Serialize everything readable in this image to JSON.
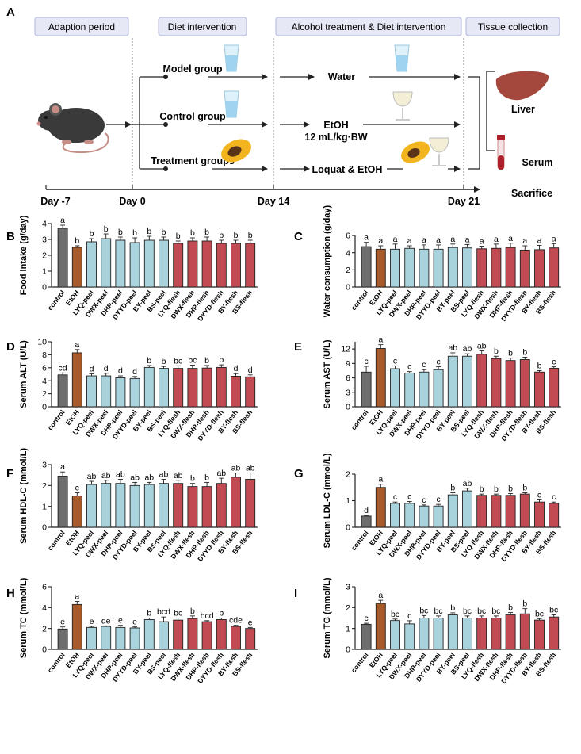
{
  "panel_a": {
    "label": "A",
    "phases": [
      "Adaption period",
      "Diet intervention",
      "Alcohol treatment & Diet intervention",
      "Tissue collection"
    ],
    "groups": [
      "Model group",
      "Control group",
      "Treatment groups"
    ],
    "treatments": [
      "Water",
      "EtOH",
      "12 mL/kg·BW",
      "Loquat & EtOH"
    ],
    "days": [
      "Day -7",
      "Day 0",
      "Day 14",
      "Day 21"
    ],
    "tissues": [
      "Liver",
      "Serum",
      "Sacrifice"
    ]
  },
  "colors": {
    "control": "#6e6e6e",
    "etoh": "#a85a2a",
    "peel": "#a8d2dc",
    "flesh": "#c24a52",
    "phase_box": "#e6e8f5",
    "liver": "#a4473c"
  },
  "chart_data": [
    {
      "panel": "B",
      "type": "bar",
      "ylabel": "Food intake (g/day)",
      "ylim": [
        0,
        4
      ],
      "yticks": [
        0,
        1,
        2,
        3,
        4
      ],
      "categories": [
        "control",
        "EtOH",
        "LYQ-peel",
        "DWX-peel",
        "DHP-peel",
        "DYYD-peel",
        "BY-peel",
        "BS-peel",
        "LYQ-flesh",
        "DWX-flesh",
        "DHP-flesh",
        "DYYD-flesh",
        "BY-flesh",
        "BS-flesh"
      ],
      "values": [
        3.7,
        2.5,
        2.85,
        3.05,
        2.95,
        2.8,
        2.95,
        2.95,
        2.75,
        2.9,
        2.9,
        2.75,
        2.75,
        2.75
      ],
      "errors": [
        0.2,
        0.1,
        0.2,
        0.3,
        0.2,
        0.3,
        0.25,
        0.2,
        0.15,
        0.2,
        0.25,
        0.2,
        0.2,
        0.2
      ],
      "letters": [
        "a",
        "b",
        "b",
        "b",
        "b",
        "b",
        "b",
        "b",
        "b",
        "b",
        "b",
        "b",
        "b",
        "b"
      ]
    },
    {
      "panel": "C",
      "type": "bar",
      "ylabel": "Water consumption (g/day)",
      "ylim": [
        0,
        6
      ],
      "yticks": [
        0,
        2,
        4,
        6
      ],
      "categories": [
        "control",
        "EtOH",
        "LYQ-peel",
        "DWX-peel",
        "DHP-peel",
        "DYYD-peel",
        "BY-peel",
        "BS-peel",
        "LYQ-flesh",
        "DWX-flesh",
        "DHP-flesh",
        "DYYD-flesh",
        "BY-flesh",
        "BS-flesh"
      ],
      "values": [
        4.7,
        4.4,
        4.4,
        4.5,
        4.4,
        4.4,
        4.6,
        4.55,
        4.45,
        4.5,
        4.6,
        4.3,
        4.35,
        4.55
      ],
      "errors": [
        0.5,
        0.4,
        0.6,
        0.3,
        0.5,
        0.5,
        0.4,
        0.4,
        0.3,
        0.5,
        0.5,
        0.5,
        0.5,
        0.5
      ],
      "letters": [
        "a",
        "a",
        "a",
        "a",
        "a",
        "a",
        "a",
        "a",
        "a",
        "a",
        "a",
        "a",
        "a",
        "a"
      ]
    },
    {
      "panel": "D",
      "type": "bar",
      "ylabel": "Serum ALT (U/L)",
      "ylim": [
        0,
        10
      ],
      "yticks": [
        0,
        2,
        4,
        6,
        8,
        10
      ],
      "categories": [
        "control",
        "EtOH",
        "LYQ-peel",
        "DWX-peel",
        "DHP-peel",
        "DYYD-peel",
        "BY-peel",
        "BS-peel",
        "LYQ-flesh",
        "DWX-flesh",
        "DHP-flesh",
        "DYYD-flesh",
        "BY-flesh",
        "BS-flesh"
      ],
      "values": [
        4.9,
        8.3,
        4.75,
        4.75,
        4.45,
        4.35,
        6.05,
        5.9,
        5.9,
        5.9,
        5.95,
        6.05,
        4.7,
        4.6
      ],
      "errors": [
        0.3,
        0.5,
        0.3,
        0.4,
        0.3,
        0.3,
        0.3,
        0.3,
        0.4,
        0.5,
        0.4,
        0.4,
        0.4,
        0.3
      ],
      "letters": [
        "cd",
        "a",
        "d",
        "d",
        "d",
        "d",
        "b",
        "b",
        "bc",
        "bc",
        "b",
        "b",
        "d",
        "d"
      ]
    },
    {
      "panel": "E",
      "type": "bar",
      "ylabel": "Serum AST (U/L)",
      "ylim": [
        0,
        13.5
      ],
      "yticks": [
        0,
        3,
        6,
        9,
        12
      ],
      "categories": [
        "control",
        "EtOH",
        "LYQ-peel",
        "DWX-peel",
        "DHP-peel",
        "DYYD-peel",
        "BY-peel",
        "BS-peel",
        "LYQ-flesh",
        "DWX-flesh",
        "DHP-flesh",
        "DYYD-flesh",
        "BY-flesh",
        "BS-flesh"
      ],
      "values": [
        7.2,
        12.1,
        7.9,
        7.0,
        7.2,
        7.7,
        10.5,
        10.5,
        10.9,
        10.0,
        9.6,
        9.8,
        7.2,
        8.0
      ],
      "errors": [
        1.2,
        0.8,
        0.6,
        0.3,
        0.5,
        0.6,
        0.7,
        0.5,
        0.7,
        0.5,
        0.5,
        0.5,
        0.3,
        0.3
      ],
      "letters": [
        "c",
        "a",
        "c",
        "c",
        "c",
        "c",
        "ab",
        "ab",
        "ab",
        "b",
        "b",
        "b",
        "b",
        "c"
      ]
    },
    {
      "panel": "F",
      "type": "bar",
      "ylabel": "Serum HDL-C (mmol/L)",
      "ylim": [
        0,
        3
      ],
      "yticks": [
        0,
        1,
        2,
        3
      ],
      "categories": [
        "control",
        "EtOH",
        "LYQ-peel",
        "DWX-peel",
        "DHP-peel",
        "DYYD-peel",
        "BY-peel",
        "BS-peel",
        "LYQ-flesh",
        "DWX-flesh",
        "DHP-flesh",
        "DYYD-flesh",
        "BY-flesh",
        "BS-flesh"
      ],
      "values": [
        2.45,
        1.5,
        2.05,
        2.1,
        2.1,
        2.0,
        2.05,
        2.1,
        2.1,
        1.95,
        1.95,
        2.1,
        2.4,
        2.3
      ],
      "errors": [
        0.2,
        0.15,
        0.15,
        0.15,
        0.2,
        0.15,
        0.1,
        0.2,
        0.15,
        0.15,
        0.2,
        0.25,
        0.2,
        0.3
      ],
      "letters": [
        "a",
        "c",
        "ab",
        "ab",
        "ab",
        "ab",
        "ab",
        "ab",
        "ab",
        "b",
        "b",
        "ab",
        "ab",
        "ab"
      ]
    },
    {
      "panel": "G",
      "type": "bar",
      "ylabel": "Serum LDL-C (mmol/L)",
      "ylim": [
        0,
        2
      ],
      "yticks": [
        0,
        1,
        2
      ],
      "categories": [
        "control",
        "EtOH",
        "LYQ-peel",
        "DWX-peel",
        "DHP-peel",
        "DYYD-peel",
        "BY-peel",
        "BS-peel",
        "LYQ-flesh",
        "DWX-flesh",
        "DHP-flesh",
        "DYYD-flesh",
        "BY-flesh",
        "BS-flesh"
      ],
      "values": [
        0.42,
        1.5,
        0.9,
        0.9,
        0.8,
        0.8,
        1.22,
        1.37,
        1.2,
        1.2,
        1.2,
        1.25,
        0.95,
        0.9
      ],
      "errors": [
        0.03,
        0.12,
        0.05,
        0.07,
        0.04,
        0.06,
        0.08,
        0.1,
        0.05,
        0.05,
        0.07,
        0.05,
        0.08,
        0.05
      ],
      "letters": [
        "d",
        "a",
        "c",
        "c",
        "c",
        "c",
        "b",
        "ab",
        "b",
        "b",
        "b",
        "b",
        "c",
        "c"
      ]
    },
    {
      "panel": "H",
      "type": "bar",
      "ylabel": "Serum TC (mmol/L)",
      "ylim": [
        0,
        6
      ],
      "yticks": [
        0,
        2,
        4,
        6
      ],
      "categories": [
        "control",
        "EtOH",
        "LYQ-peel",
        "DWX-peel",
        "DHP-peel",
        "DYYD-peel",
        "BY-peel",
        "BS-peel",
        "LYQ-flesh",
        "DWX-flesh",
        "DHP-flesh",
        "DYYD-flesh",
        "BY-flesh",
        "BS-flesh"
      ],
      "values": [
        1.95,
        4.3,
        2.1,
        2.2,
        2.1,
        2.05,
        2.85,
        2.65,
        2.8,
        2.95,
        2.65,
        2.85,
        2.2,
        2.0
      ],
      "errors": [
        0.2,
        0.3,
        0.1,
        0.05,
        0.2,
        0.1,
        0.15,
        0.45,
        0.2,
        0.25,
        0.1,
        0.15,
        0.1,
        0.1
      ],
      "letters": [
        "e",
        "a",
        "e",
        "de",
        "e",
        "e",
        "b",
        "bcd",
        "bc",
        "b",
        "bcd",
        "b",
        "cde",
        "e"
      ]
    },
    {
      "panel": "I",
      "type": "bar",
      "ylabel": "Serum TG (mmol/L)",
      "ylim": [
        0,
        3
      ],
      "yticks": [
        0,
        1,
        2,
        3
      ],
      "categories": [
        "control",
        "EtOH",
        "LYQ-peel",
        "DWX-peel",
        "DHP-peel",
        "DYYD-peel",
        "BY-peel",
        "BS-peel",
        "LYQ-flesh",
        "DWX-flesh",
        "DHP-flesh",
        "DYYD-flesh",
        "BY-flesh",
        "BS-flesh"
      ],
      "values": [
        1.2,
        2.2,
        1.38,
        1.22,
        1.5,
        1.5,
        1.65,
        1.5,
        1.5,
        1.5,
        1.65,
        1.7,
        1.4,
        1.55
      ],
      "errors": [
        0.05,
        0.15,
        0.07,
        0.15,
        0.12,
        0.1,
        0.1,
        0.1,
        0.1,
        0.1,
        0.12,
        0.25,
        0.07,
        0.1
      ],
      "letters": [
        "c",
        "a",
        "bc",
        "c",
        "bc",
        "bc",
        "b",
        "bc",
        "bc",
        "bc",
        "b",
        "b",
        "bc",
        "bc"
      ]
    }
  ]
}
